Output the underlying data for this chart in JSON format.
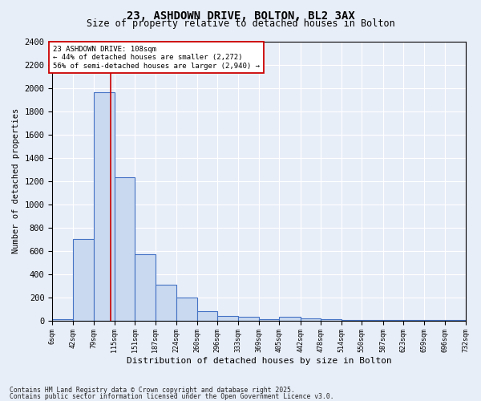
{
  "title": "23, ASHDOWN DRIVE, BOLTON, BL2 3AX",
  "subtitle": "Size of property relative to detached houses in Bolton",
  "xlabel": "Distribution of detached houses by size in Bolton",
  "ylabel": "Number of detached properties",
  "bin_edges": [
    6,
    42,
    79,
    115,
    151,
    187,
    224,
    260,
    296,
    333,
    369,
    405,
    442,
    478,
    514,
    550,
    587,
    623,
    659,
    696,
    732
  ],
  "bar_heights": [
    15,
    700,
    1960,
    1230,
    570,
    305,
    200,
    80,
    40,
    35,
    10,
    30,
    20,
    10,
    5,
    5,
    5,
    2,
    2,
    2
  ],
  "bar_color": "#c9d9f0",
  "bar_edge_color": "#4472c4",
  "bar_edge_width": 0.8,
  "red_line_x": 108,
  "red_line_color": "#cc0000",
  "ylim": [
    0,
    2400
  ],
  "yticks": [
    0,
    200,
    400,
    600,
    800,
    1000,
    1200,
    1400,
    1600,
    1800,
    2000,
    2200,
    2400
  ],
  "annotation_text": "23 ASHDOWN DRIVE: 108sqm\n← 44% of detached houses are smaller (2,272)\n56% of semi-detached houses are larger (2,940) →",
  "annotation_box_color": "#ffffff",
  "annotation_box_edge_color": "#cc0000",
  "background_color": "#e8eef8",
  "grid_color": "#ffffff",
  "footnote1": "Contains HM Land Registry data © Crown copyright and database right 2025.",
  "footnote2": "Contains public sector information licensed under the Open Government Licence v3.0."
}
